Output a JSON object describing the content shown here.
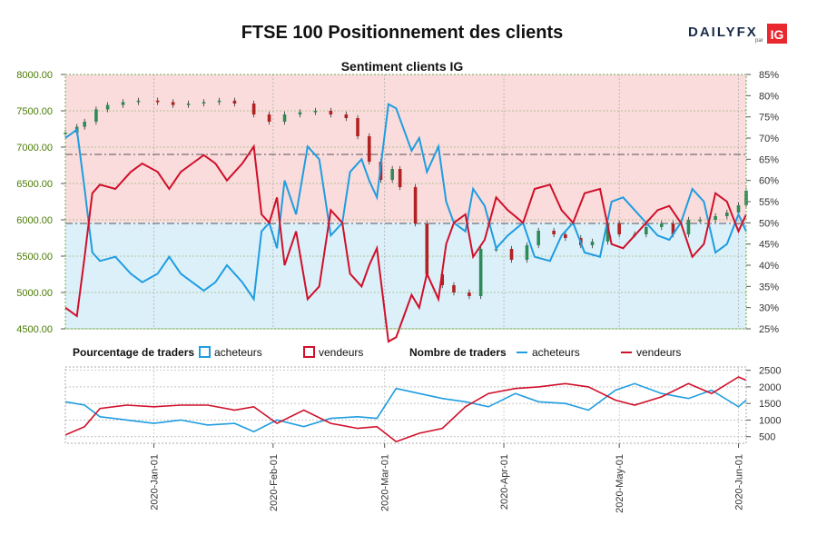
{
  "title": "FTSE 100 Positionnement des clients",
  "logo": {
    "brand": "DAILYFX",
    "sub": "par",
    "badge": "IG",
    "brand_color": "#1a2b49",
    "badge_color": "#e8272f"
  },
  "colors": {
    "bull_candle": "#2e8b57",
    "bear_candle": "#b22222",
    "buyers": "#1f9de0",
    "sellers": "#d0102a",
    "zone_top": "#fadcdc",
    "zone_bottom": "#dcf0fa",
    "axis_text_left": "#4a7a00",
    "frame_dotted": "#6aa84f"
  },
  "legend": {
    "pct_title": "Pourcentage de traders",
    "pct_buyers": "acheteurs",
    "pct_sellers": "vendeurs",
    "count_title": "Nombre de traders",
    "count_buyers": "acheteurs",
    "count_sellers": "vendeurs"
  },
  "chart_data": [
    {
      "type": "candlestick",
      "title": "Sentiment clients IG",
      "y_left_label": "",
      "y_left_ticks": [
        "8000.00",
        "7500.00",
        "7000.00",
        "6500.00",
        "6000.00",
        "5500.00",
        "5000.00",
        "4500.00"
      ],
      "ylim_left": [
        4500,
        8000
      ],
      "y_right_ticks": [
        "85%",
        "80%",
        "75%",
        "70%",
        "65%",
        "60%",
        "55%",
        "50%",
        "45%",
        "40%",
        "35%",
        "30%",
        "25%"
      ],
      "ylim_right": [
        25,
        85
      ],
      "x_tick_labels": [
        "2020-Jan-01",
        "2020-Feb-01",
        "2020-Mar-01",
        "2020-Apr-01",
        "2020-May-01",
        "2020-Jun-01"
      ],
      "x_tick_dates": [
        "2020-01-01",
        "2020-02-01",
        "2020-03-01",
        "2020-04-01",
        "2020-05-01",
        "2020-06-01"
      ],
      "date_range": [
        "2019-12-09",
        "2020-06-03"
      ],
      "reference_lines": [
        6900,
        5950
      ],
      "price_close": [
        [
          "2019-12-09",
          7200
        ],
        [
          "2019-12-12",
          7280
        ],
        [
          "2019-12-14",
          7350
        ],
        [
          "2019-12-17",
          7520
        ],
        [
          "2019-12-20",
          7580
        ],
        [
          "2019-12-24",
          7620
        ],
        [
          "2019-12-28",
          7640
        ],
        [
          "2020-01-02",
          7620
        ],
        [
          "2020-01-06",
          7580
        ],
        [
          "2020-01-10",
          7600
        ],
        [
          "2020-01-14",
          7620
        ],
        [
          "2020-01-18",
          7640
        ],
        [
          "2020-01-22",
          7600
        ],
        [
          "2020-01-27",
          7450
        ],
        [
          "2020-01-31",
          7350
        ],
        [
          "2020-02-04",
          7450
        ],
        [
          "2020-02-08",
          7480
        ],
        [
          "2020-02-12",
          7500
        ],
        [
          "2020-02-16",
          7450
        ],
        [
          "2020-02-20",
          7400
        ],
        [
          "2020-02-23",
          7150
        ],
        [
          "2020-02-26",
          6800
        ],
        [
          "2020-02-29",
          6550
        ],
        [
          "2020-03-03",
          6700
        ],
        [
          "2020-03-05",
          6450
        ],
        [
          "2020-03-09",
          5950
        ],
        [
          "2020-03-12",
          5250
        ],
        [
          "2020-03-16",
          5100
        ],
        [
          "2020-03-19",
          5000
        ],
        [
          "2020-03-23",
          4950
        ],
        [
          "2020-03-26",
          5600
        ],
        [
          "2020-03-30",
          5600
        ],
        [
          "2020-04-03",
          5450
        ],
        [
          "2020-04-07",
          5650
        ],
        [
          "2020-04-10",
          5850
        ],
        [
          "2020-04-14",
          5800
        ],
        [
          "2020-04-17",
          5750
        ],
        [
          "2020-04-21",
          5650
        ],
        [
          "2020-04-24",
          5700
        ],
        [
          "2020-04-28",
          5950
        ],
        [
          "2020-05-01",
          5800
        ],
        [
          "2020-05-05",
          5800
        ],
        [
          "2020-05-08",
          5900
        ],
        [
          "2020-05-12",
          5950
        ],
        [
          "2020-05-15",
          5800
        ],
        [
          "2020-05-19",
          6000
        ],
        [
          "2020-05-22",
          6000
        ],
        [
          "2020-05-26",
          6050
        ],
        [
          "2020-05-29",
          6100
        ],
        [
          "2020-06-01",
          6200
        ],
        [
          "2020-06-03",
          6400
        ]
      ],
      "series": [
        {
          "name": "acheteurs",
          "values": [
            [
              "2019-12-09",
              70
            ],
            [
              "2019-12-12",
              72
            ],
            [
              "2019-12-14",
              58
            ],
            [
              "2019-12-16",
              43
            ],
            [
              "2019-12-18",
              41
            ],
            [
              "2019-12-22",
              42
            ],
            [
              "2019-12-26",
              38
            ],
            [
              "2019-12-29",
              36
            ],
            [
              "2020-01-02",
              38
            ],
            [
              "2020-01-05",
              42
            ],
            [
              "2020-01-08",
              38
            ],
            [
              "2020-01-11",
              36
            ],
            [
              "2020-01-14",
              34
            ],
            [
              "2020-01-17",
              36
            ],
            [
              "2020-01-20",
              40
            ],
            [
              "2020-01-24",
              36
            ],
            [
              "2020-01-27",
              32
            ],
            [
              "2020-01-29",
              48
            ],
            [
              "2020-01-31",
              50
            ],
            [
              "2020-02-02",
              44
            ],
            [
              "2020-02-04",
              60
            ],
            [
              "2020-02-07",
              52
            ],
            [
              "2020-02-10",
              68
            ],
            [
              "2020-02-13",
              65
            ],
            [
              "2020-02-16",
              47
            ],
            [
              "2020-02-19",
              50
            ],
            [
              "2020-02-21",
              62
            ],
            [
              "2020-02-24",
              65
            ],
            [
              "2020-02-26",
              60
            ],
            [
              "2020-02-28",
              56
            ],
            [
              "2020-03-02",
              78
            ],
            [
              "2020-03-04",
              77
            ],
            [
              "2020-03-06",
              72
            ],
            [
              "2020-03-08",
              67
            ],
            [
              "2020-03-10",
              70
            ],
            [
              "2020-03-12",
              62
            ],
            [
              "2020-03-15",
              68
            ],
            [
              "2020-03-17",
              55
            ],
            [
              "2020-03-19",
              50
            ],
            [
              "2020-03-22",
              48
            ],
            [
              "2020-03-24",
              58
            ],
            [
              "2020-03-27",
              54
            ],
            [
              "2020-03-30",
              44
            ],
            [
              "2020-04-02",
              47
            ],
            [
              "2020-04-06",
              50
            ],
            [
              "2020-04-09",
              42
            ],
            [
              "2020-04-13",
              41
            ],
            [
              "2020-04-16",
              47
            ],
            [
              "2020-04-19",
              50
            ],
            [
              "2020-04-22",
              43
            ],
            [
              "2020-04-26",
              42
            ],
            [
              "2020-04-29",
              55
            ],
            [
              "2020-05-02",
              56
            ],
            [
              "2020-05-05",
              53
            ],
            [
              "2020-05-08",
              50
            ],
            [
              "2020-05-11",
              47
            ],
            [
              "2020-05-14",
              46
            ],
            [
              "2020-05-17",
              50
            ],
            [
              "2020-05-20",
              58
            ],
            [
              "2020-05-23",
              55
            ],
            [
              "2020-05-26",
              43
            ],
            [
              "2020-05-29",
              45
            ],
            [
              "2020-06-01",
              52
            ],
            [
              "2020-06-03",
              48
            ]
          ]
        },
        {
          "name": "vendeurs",
          "values": [
            [
              "2019-12-09",
              30
            ],
            [
              "2019-12-12",
              28
            ],
            [
              "2019-12-14",
              42
            ],
            [
              "2019-12-16",
              57
            ],
            [
              "2019-12-18",
              59
            ],
            [
              "2019-12-22",
              58
            ],
            [
              "2019-12-26",
              62
            ],
            [
              "2019-12-29",
              64
            ],
            [
              "2020-01-02",
              62
            ],
            [
              "2020-01-05",
              58
            ],
            [
              "2020-01-08",
              62
            ],
            [
              "2020-01-11",
              64
            ],
            [
              "2020-01-14",
              66
            ],
            [
              "2020-01-17",
              64
            ],
            [
              "2020-01-20",
              60
            ],
            [
              "2020-01-24",
              64
            ],
            [
              "2020-01-27",
              68
            ],
            [
              "2020-01-29",
              52
            ],
            [
              "2020-01-31",
              50
            ],
            [
              "2020-02-02",
              56
            ],
            [
              "2020-02-04",
              40
            ],
            [
              "2020-02-07",
              48
            ],
            [
              "2020-02-10",
              32
            ],
            [
              "2020-02-13",
              35
            ],
            [
              "2020-02-16",
              53
            ],
            [
              "2020-02-19",
              50
            ],
            [
              "2020-02-21",
              38
            ],
            [
              "2020-02-24",
              35
            ],
            [
              "2020-02-26",
              40
            ],
            [
              "2020-02-28",
              44
            ],
            [
              "2020-03-02",
              22
            ],
            [
              "2020-03-04",
              23
            ],
            [
              "2020-03-06",
              28
            ],
            [
              "2020-03-08",
              33
            ],
            [
              "2020-03-10",
              30
            ],
            [
              "2020-03-12",
              38
            ],
            [
              "2020-03-15",
              32
            ],
            [
              "2020-03-17",
              45
            ],
            [
              "2020-03-19",
              50
            ],
            [
              "2020-03-22",
              52
            ],
            [
              "2020-03-24",
              42
            ],
            [
              "2020-03-27",
              46
            ],
            [
              "2020-03-30",
              56
            ],
            [
              "2020-04-02",
              53
            ],
            [
              "2020-04-06",
              50
            ],
            [
              "2020-04-09",
              58
            ],
            [
              "2020-04-13",
              59
            ],
            [
              "2020-04-16",
              53
            ],
            [
              "2020-04-19",
              50
            ],
            [
              "2020-04-22",
              57
            ],
            [
              "2020-04-26",
              58
            ],
            [
              "2020-04-29",
              45
            ],
            [
              "2020-05-02",
              44
            ],
            [
              "2020-05-05",
              47
            ],
            [
              "2020-05-08",
              50
            ],
            [
              "2020-05-11",
              53
            ],
            [
              "2020-05-14",
              54
            ],
            [
              "2020-05-17",
              50
            ],
            [
              "2020-05-20",
              42
            ],
            [
              "2020-05-23",
              45
            ],
            [
              "2020-05-26",
              57
            ],
            [
              "2020-05-29",
              55
            ],
            [
              "2020-06-01",
              48
            ],
            [
              "2020-06-03",
              52
            ]
          ]
        }
      ]
    },
    {
      "type": "line",
      "title": "",
      "y_ticks": [
        "2500",
        "2000",
        "1500",
        "1000",
        "500"
      ],
      "ylim": [
        300,
        2600
      ],
      "series": [
        {
          "name": "acheteurs",
          "values": [
            [
              "2019-12-09",
              1550
            ],
            [
              "2019-12-14",
              1450
            ],
            [
              "2019-12-18",
              1100
            ],
            [
              "2019-12-25",
              1000
            ],
            [
              "2020-01-01",
              900
            ],
            [
              "2020-01-08",
              1000
            ],
            [
              "2020-01-15",
              850
            ],
            [
              "2020-01-22",
              900
            ],
            [
              "2020-01-27",
              650
            ],
            [
              "2020-02-02",
              1000
            ],
            [
              "2020-02-09",
              800
            ],
            [
              "2020-02-16",
              1050
            ],
            [
              "2020-02-23",
              1100
            ],
            [
              "2020-02-28",
              1050
            ],
            [
              "2020-03-04",
              1950
            ],
            [
              "2020-03-10",
              1800
            ],
            [
              "2020-03-16",
              1650
            ],
            [
              "2020-03-22",
              1550
            ],
            [
              "2020-03-28",
              1400
            ],
            [
              "2020-04-04",
              1800
            ],
            [
              "2020-04-10",
              1550
            ],
            [
              "2020-04-17",
              1500
            ],
            [
              "2020-04-23",
              1300
            ],
            [
              "2020-04-30",
              1900
            ],
            [
              "2020-05-05",
              2100
            ],
            [
              "2020-05-12",
              1800
            ],
            [
              "2020-05-19",
              1650
            ],
            [
              "2020-05-25",
              1900
            ],
            [
              "2020-06-01",
              1400
            ],
            [
              "2020-06-03",
              1600
            ]
          ]
        },
        {
          "name": "vendeurs",
          "values": [
            [
              "2019-12-09",
              550
            ],
            [
              "2019-12-14",
              800
            ],
            [
              "2019-12-18",
              1350
            ],
            [
              "2019-12-25",
              1450
            ],
            [
              "2020-01-01",
              1400
            ],
            [
              "2020-01-08",
              1450
            ],
            [
              "2020-01-15",
              1450
            ],
            [
              "2020-01-22",
              1300
            ],
            [
              "2020-01-27",
              1400
            ],
            [
              "2020-02-02",
              900
            ],
            [
              "2020-02-09",
              1300
            ],
            [
              "2020-02-16",
              900
            ],
            [
              "2020-02-23",
              750
            ],
            [
              "2020-02-28",
              800
            ],
            [
              "2020-03-04",
              350
            ],
            [
              "2020-03-10",
              600
            ],
            [
              "2020-03-16",
              750
            ],
            [
              "2020-03-22",
              1400
            ],
            [
              "2020-03-28",
              1800
            ],
            [
              "2020-04-04",
              1950
            ],
            [
              "2020-04-10",
              2000
            ],
            [
              "2020-04-17",
              2100
            ],
            [
              "2020-04-23",
              2000
            ],
            [
              "2020-04-30",
              1600
            ],
            [
              "2020-05-05",
              1450
            ],
            [
              "2020-05-12",
              1700
            ],
            [
              "2020-05-19",
              2100
            ],
            [
              "2020-05-25",
              1800
            ],
            [
              "2020-06-01",
              2300
            ],
            [
              "2020-06-03",
              2200
            ]
          ]
        }
      ]
    }
  ]
}
